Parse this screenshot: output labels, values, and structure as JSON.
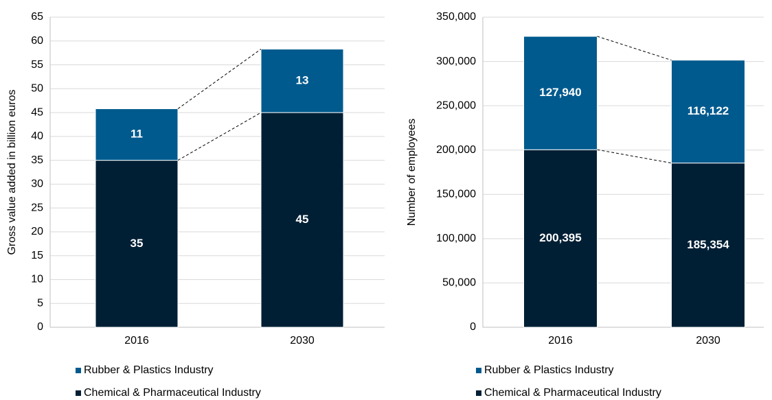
{
  "chart_data": [
    {
      "type": "stacked_bar",
      "y_label": "Gross value added in billion euros",
      "categories": [
        "2016",
        "2030"
      ],
      "ylim": [
        0,
        65
      ],
      "yticks": [
        0,
        5,
        10,
        15,
        20,
        25,
        30,
        35,
        40,
        45,
        50,
        55,
        60,
        65
      ],
      "grid": true,
      "series": [
        {
          "name": "Chemical & Pharmaceutical Industry",
          "color": "#001f35",
          "values": [
            35,
            45
          ]
        },
        {
          "name": "Rubber & Plastics Industry",
          "color": "#005a8e",
          "values": [
            10.8,
            13.3
          ],
          "value_labels": [
            "11",
            "13"
          ]
        }
      ]
    },
    {
      "type": "stacked_bar",
      "y_label": "Number of employees",
      "categories": [
        "2016",
        "2030"
      ],
      "ylim": [
        0,
        350000
      ],
      "yticks": [
        0,
        {
          "value": 50000,
          "label": "50,000"
        },
        {
          "value": 100000,
          "label": "100,000"
        },
        {
          "value": 150000,
          "label": "150,000"
        },
        {
          "value": 200000,
          "label": "200,000"
        },
        {
          "value": 250000,
          "label": "250,000"
        },
        {
          "value": 300000,
          "label": "300,000"
        },
        {
          "value": 350000,
          "label": "350,000"
        }
      ],
      "grid": true,
      "series": [
        {
          "name": "Chemical & Pharmaceutical Industry",
          "color": "#001f35",
          "values": [
            200395,
            185354
          ],
          "value_labels": [
            "200,395",
            "185,354"
          ]
        },
        {
          "name": "Rubber & Plastics Industry",
          "color": "#005a8e",
          "values": [
            127940,
            116122
          ],
          "value_labels": [
            "127,940",
            "116,122"
          ]
        }
      ]
    }
  ]
}
